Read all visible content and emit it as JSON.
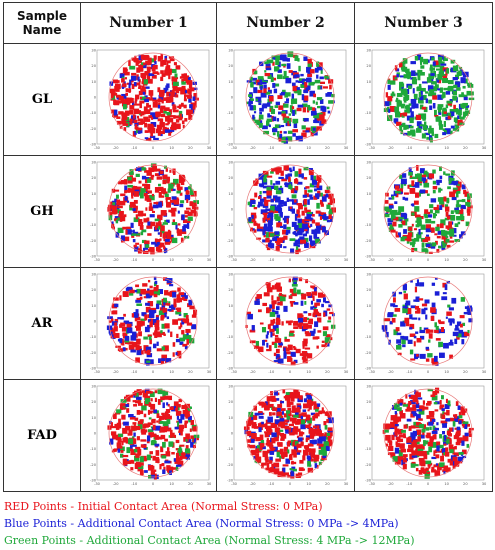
{
  "table": {
    "header": {
      "sample_line1": "Sample",
      "sample_line2": "Name",
      "columns": [
        "Number 1",
        "Number 2",
        "Number 3"
      ]
    },
    "rows": [
      {
        "label": "GL"
      },
      {
        "label": "GH"
      },
      {
        "label": "AR"
      },
      {
        "label": "FAD"
      }
    ],
    "axis_ticks": [
      "30",
      "20",
      "10",
      "0",
      "-10",
      "-20",
      "-30"
    ],
    "x_ticks": [
      "-30",
      "-20",
      "-10",
      "0",
      "10",
      "20",
      "30"
    ]
  },
  "legend": {
    "red": "RED Points - Initial Contact Area (Normal Stress: 0 MPa)",
    "blue": "Blue Points - Additional Contact Area (Normal Stress: 0 MPa -> 4MPa)",
    "green": "Green Points - Additional Contact Area (Normal Stress: 4 MPa -> 12MPa)"
  },
  "colors": {
    "red": "#e8141b",
    "blue": "#1a1fd6",
    "green": "#1fa83a",
    "circle": "#e87a7a"
  },
  "scatter_fill": [
    [
      {
        "red": 0.55,
        "blue": 0.15,
        "green": 0.05
      },
      {
        "red": 0.12,
        "blue": 0.25,
        "green": 0.2
      },
      {
        "red": 0.05,
        "blue": 0.15,
        "green": 0.4
      }
    ],
    [
      {
        "red": 0.45,
        "blue": 0.12,
        "green": 0.1
      },
      {
        "red": 0.2,
        "blue": 0.35,
        "green": 0.08
      },
      {
        "red": 0.15,
        "blue": 0.12,
        "green": 0.3
      }
    ],
    [
      {
        "red": 0.3,
        "blue": 0.15,
        "green": 0.05
      },
      {
        "red": 0.25,
        "blue": 0.12,
        "green": 0.05
      },
      {
        "red": 0.1,
        "blue": 0.18,
        "green": 0.04
      }
    ],
    [
      {
        "red": 0.45,
        "blue": 0.1,
        "green": 0.12
      },
      {
        "red": 0.55,
        "blue": 0.15,
        "green": 0.08
      },
      {
        "red": 0.45,
        "blue": 0.12,
        "green": 0.1
      }
    ]
  ]
}
